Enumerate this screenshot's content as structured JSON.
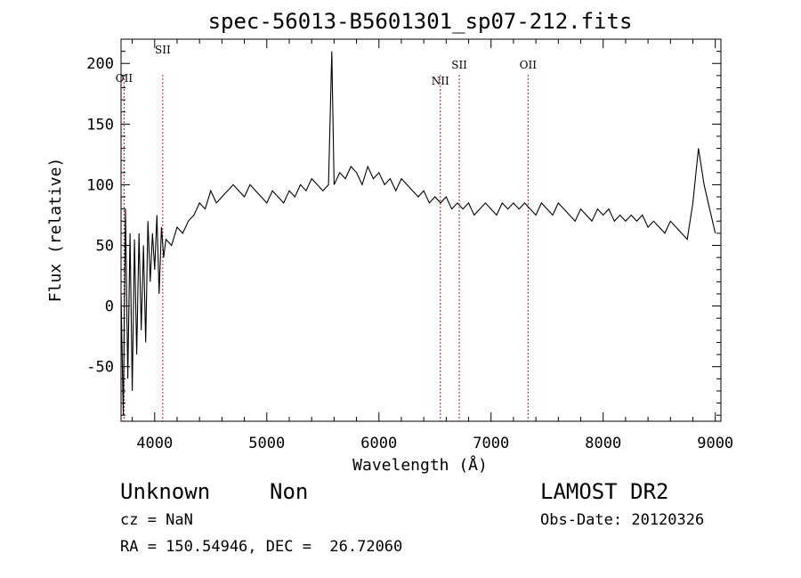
{
  "chart_data": {
    "type": "line",
    "title": "spec-56013-B5601301_sp07-212.fits",
    "xlabel": "Wavelength (Å)",
    "ylabel": "Flux (relative)",
    "xlim": [
      3700,
      9050
    ],
    "ylim": [
      -95,
      220
    ],
    "x_ticks": [
      4000,
      5000,
      6000,
      7000,
      8000,
      9000
    ],
    "y_ticks": [
      -50,
      0,
      50,
      100,
      150,
      200
    ],
    "grid": false,
    "series": [
      {
        "x": [
          3700,
          3720,
          3740,
          3760,
          3780,
          3800,
          3820,
          3840,
          3860,
          3880,
          3900,
          3920,
          3940,
          3960,
          3980,
          4000,
          4020,
          4040,
          4060,
          4080,
          4100,
          4150,
          4200,
          4250,
          4300,
          4350,
          4400,
          4450,
          4500,
          4550,
          4600,
          4650,
          4700,
          4750,
          4800,
          4850,
          4900,
          4950,
          5000,
          5050,
          5100,
          5150,
          5200,
          5250,
          5300,
          5350,
          5400,
          5450,
          5500,
          5550,
          5580,
          5600,
          5650,
          5700,
          5750,
          5800,
          5850,
          5900,
          5950,
          6000,
          6050,
          6100,
          6150,
          6200,
          6250,
          6300,
          6350,
          6400,
          6450,
          6500,
          6550,
          6600,
          6650,
          6700,
          6750,
          6800,
          6850,
          6900,
          6950,
          7000,
          7050,
          7100,
          7150,
          7200,
          7250,
          7300,
          7350,
          7400,
          7450,
          7500,
          7550,
          7600,
          7650,
          7700,
          7750,
          7800,
          7850,
          7900,
          7950,
          8000,
          8050,
          8100,
          8150,
          8200,
          8250,
          8300,
          8350,
          8400,
          8450,
          8500,
          8550,
          8600,
          8650,
          8700,
          8750,
          8800,
          8850,
          8900,
          8950,
          9000
        ],
        "y": [
          10,
          -90,
          80,
          -60,
          60,
          -70,
          55,
          -40,
          60,
          -20,
          50,
          -30,
          70,
          20,
          60,
          30,
          75,
          10,
          65,
          40,
          55,
          50,
          65,
          60,
          70,
          75,
          85,
          80,
          95,
          85,
          90,
          95,
          100,
          95,
          90,
          100,
          95,
          90,
          85,
          95,
          90,
          85,
          95,
          90,
          100,
          95,
          105,
          100,
          95,
          100,
          210,
          100,
          110,
          105,
          115,
          110,
          100,
          115,
          105,
          110,
          100,
          105,
          95,
          105,
          100,
          95,
          90,
          95,
          85,
          90,
          85,
          90,
          80,
          85,
          80,
          85,
          75,
          80,
          85,
          80,
          75,
          85,
          80,
          85,
          80,
          85,
          80,
          75,
          85,
          80,
          75,
          85,
          80,
          75,
          70,
          80,
          75,
          70,
          80,
          75,
          80,
          70,
          75,
          70,
          75,
          70,
          75,
          65,
          70,
          65,
          60,
          70,
          65,
          60,
          55,
          85,
          130,
          100,
          80,
          60
        ]
      }
    ],
    "lines": [
      {
        "label": "OII",
        "x": 3727
      },
      {
        "label": "SII",
        "x": 4072
      },
      {
        "label": "NII",
        "x": 6548
      },
      {
        "label": "SII",
        "x": 6717
      },
      {
        "label": "OII",
        "x": 7330
      }
    ],
    "annotations": {
      "class_label": "Unknown",
      "subclass_label": "Non",
      "survey": "LAMOST DR2",
      "redshift": "cz = NaN",
      "obs_date": "Obs-Date: 20120326",
      "coords": "RA = 150.54946, DEC =  26.72060"
    }
  }
}
